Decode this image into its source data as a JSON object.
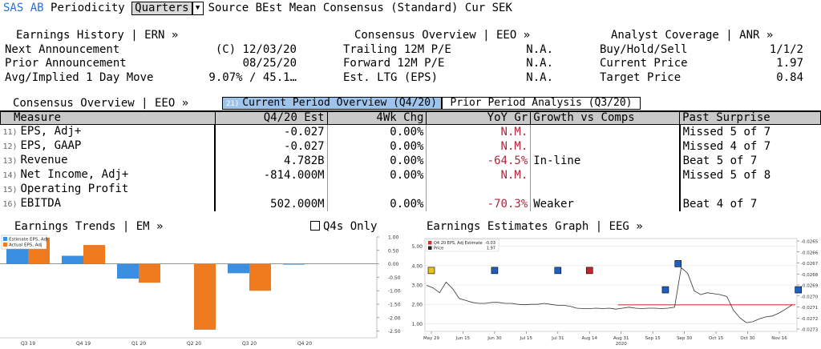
{
  "toolbar": {
    "ticker": "SAS AB",
    "periodicity_label": "Periodicity",
    "periodicity_value": "Quarters",
    "source_text": "Source BEst Mean Consensus (Standard) Cur SEK"
  },
  "earnings_history": {
    "title": "Earnings History | ERN »",
    "rows": [
      {
        "label": "Next Announcement",
        "value": "(C)  12/03/20"
      },
      {
        "label": "Prior Announcement",
        "value": "08/25/20"
      },
      {
        "label": "Avg/Implied 1 Day Move",
        "value": "9.07% / 45.1…"
      }
    ]
  },
  "consensus_summary": {
    "title": "Consensus Overview | EEO »",
    "rows": [
      {
        "label": "Trailing 12M P/E",
        "value": "N.A."
      },
      {
        "label": "Forward 12M P/E",
        "value": "N.A."
      },
      {
        "label": "Est. LTG (EPS)",
        "value": "N.A."
      }
    ]
  },
  "analyst_coverage": {
    "title": "Analyst Coverage | ANR »",
    "rows": [
      {
        "label": "Buy/Hold/Sell",
        "value": "1/1/2"
      },
      {
        "label": "Current Price",
        "value": "1.97"
      },
      {
        "label": "Target Price",
        "value": "0.84"
      }
    ]
  },
  "consensus_tabs": {
    "title": "Consensus Overview | EEO »",
    "tab_current_num": "21)",
    "tab_current": "Current Period Overview (Q4/20)",
    "tab_prior": "Prior Period Analysis (Q3/20)"
  },
  "table": {
    "headers": [
      "Measure",
      "Q4/20 Est",
      "4Wk Chg",
      "YoY Gr",
      "Growth vs Comps",
      "Past Surprise"
    ],
    "rows": [
      {
        "num": "11)",
        "measure": "EPS, Adj+",
        "est": "-0.027",
        "chg": "0.00%",
        "yoy": "N.M.",
        "comps": "",
        "surprise": "Missed 5 of 7"
      },
      {
        "num": "12)",
        "measure": "EPS, GAAP",
        "est": "-0.027",
        "chg": "0.00%",
        "yoy": "N.M.",
        "comps": "",
        "surprise": "Missed 4 of 7"
      },
      {
        "num": "13)",
        "measure": "Revenue",
        "est": "4.782B",
        "chg": "0.00%",
        "yoy": "-64.5%",
        "comps": "In-line",
        "surprise": "Beat 5 of 7"
      },
      {
        "num": "14)",
        "measure": "Net Income, Adj+",
        "est": "-814.000M",
        "chg": "0.00%",
        "yoy": "N.M.",
        "comps": "",
        "surprise": "Missed 5 of 8"
      },
      {
        "num": "15)",
        "measure": "Operating Profit",
        "est": "",
        "chg": "",
        "yoy": "",
        "comps": "",
        "surprise": ""
      },
      {
        "num": "16)",
        "measure": "EBITDA",
        "est": "502.000M",
        "chg": "0.00%",
        "yoy": "-70.3%",
        "comps": "Weaker",
        "surprise": "Beat 4 of 7"
      }
    ]
  },
  "earnings_trends": {
    "title": "Earnings Trends | EM »",
    "q4s_only_label": "Q4s Only"
  },
  "estimates_graph": {
    "title": "Earnings Estimates Graph | EEG »"
  },
  "chart_data": [
    {
      "type": "bar",
      "categories": [
        "Q3 19",
        "Q4 19",
        "Q1 20",
        "Q2 20",
        "Q3 20",
        "Q4 20"
      ],
      "series": [
        {
          "name": "Estimate EPS, Adj",
          "color": "#3b8fe0",
          "values": [
            0.75,
            0.3,
            -0.55,
            null,
            -0.35,
            -0.03
          ]
        },
        {
          "name": "Actual EPS, Adj",
          "color": "#f07a1e",
          "values": [
            0.97,
            0.7,
            -0.7,
            -2.45,
            -1.0,
            null
          ]
        }
      ],
      "ylim": [
        -2.75,
        1.0
      ],
      "yticks": [
        "1.00",
        "0.50",
        "0.00",
        "-0.50",
        "-1.00",
        "-1.50",
        "-2.00",
        "-2.50"
      ],
      "legend_position": "top-left"
    },
    {
      "type": "line",
      "legend": [
        {
          "name": "Q4 20 EPS, Adj Estimate",
          "value": "-0.03",
          "color": "#d0312d"
        },
        {
          "name": "Price",
          "value": "1.97",
          "color": "#222222"
        }
      ],
      "x_ticks": [
        "May 29",
        "Jun 15",
        "Jun 30",
        "Jul 15",
        "Jul 31",
        "Aug 14",
        "Aug 31",
        "Sep 15",
        "Sep 30",
        "Oct 15",
        "Oct 30",
        "Nov 16"
      ],
      "x_year_label": "2020",
      "left_yticks": [
        "5.00",
        "4.00",
        "3.00",
        "2.00",
        "1.00"
      ],
      "left_ylim": [
        0.6,
        5.4
      ],
      "right_yticks": [
        "-0.0265",
        "-0.0266",
        "-0.0267",
        "-0.0268",
        "-0.0269",
        "-0.0270",
        "-0.0271",
        "-0.0272",
        "-0.0273"
      ],
      "price_series": [
        2.98,
        2.85,
        2.6,
        3.15,
        2.8,
        2.3,
        2.2,
        2.1,
        2.05,
        2.05,
        2.1,
        2.1,
        2.05,
        2.05,
        2.0,
        1.98,
        2.0,
        2.0,
        2.05,
        2.0,
        1.95,
        1.95,
        1.9,
        1.8,
        1.78,
        1.78,
        1.8,
        1.78,
        1.8,
        1.75,
        1.8,
        1.85,
        1.8,
        1.78,
        1.8,
        1.8,
        1.78,
        1.8,
        1.85,
        3.9,
        3.6,
        2.7,
        2.5,
        2.6,
        2.55,
        2.5,
        2.4,
        1.7,
        1.3,
        1.05,
        1.1,
        1.25,
        1.35,
        1.4,
        1.55,
        1.75,
        1.97
      ],
      "estimate_value": -0.027,
      "markers": [
        {
          "x_index": 0,
          "y": 3.75,
          "color": "#e8c21a"
        },
        {
          "x_index": 2,
          "y": 3.75,
          "color": "#1f5fbf"
        },
        {
          "x_index": 4,
          "y": 3.75,
          "color": "#1f5fbf"
        },
        {
          "x_index": 5,
          "y": 3.75,
          "color": "#c0262d"
        },
        {
          "x_index": 7.4,
          "y": 2.75,
          "color": "#1f5fbf"
        },
        {
          "x_index": 7.8,
          "y": 4.1,
          "color": "#1f5fbf"
        },
        {
          "x_index": 11.6,
          "y": 2.75,
          "color": "#1f5fbf"
        }
      ]
    }
  ]
}
